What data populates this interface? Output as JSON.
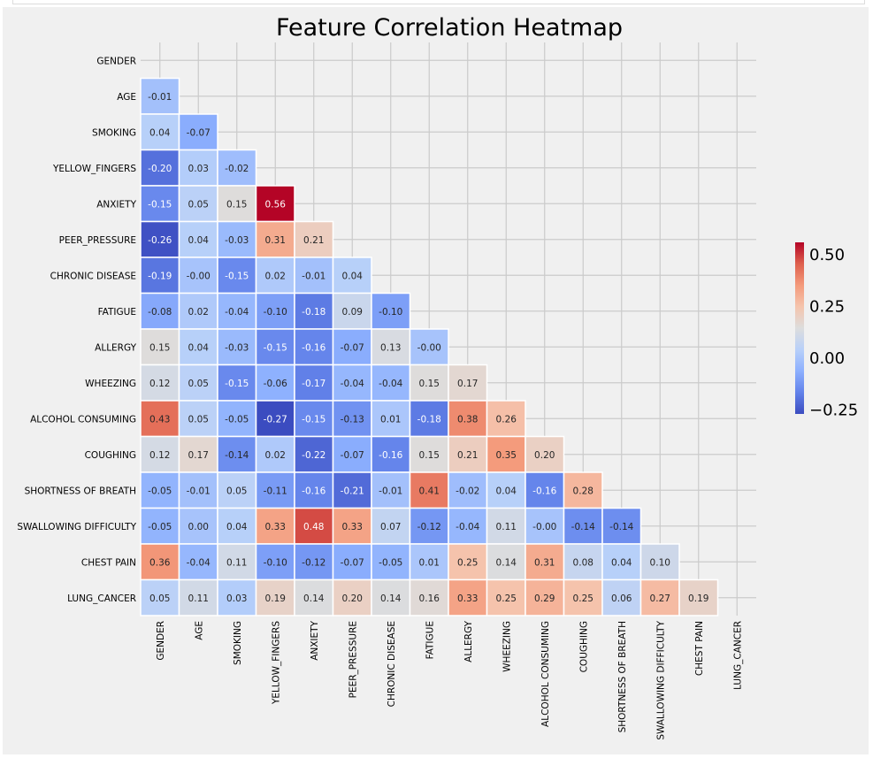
{
  "chart_data": {
    "type": "heatmap",
    "title": "Feature Correlation Heatmap",
    "mask": "upper-triangle-including-diagonal",
    "colormap": "coolwarm",
    "vmin": -0.27,
    "vmax": 0.56,
    "labels": [
      "GENDER",
      "AGE",
      "SMOKING",
      "YELLOW_FINGERS",
      "ANXIETY",
      "PEER_PRESSURE",
      "CHRONIC DISEASE",
      "FATIGUE",
      "ALLERGY",
      "WHEEZING",
      "ALCOHOL CONSUMING",
      "COUGHING",
      "SHORTNESS OF BREATH",
      "SWALLOWING DIFFICULTY",
      "CHEST PAIN",
      "LUNG_CANCER"
    ],
    "lower_triangle": [
      [],
      [
        "-0.01"
      ],
      [
        "0.04",
        "-0.07"
      ],
      [
        "-0.20",
        "0.03",
        "-0.02"
      ],
      [
        "-0.15",
        "0.05",
        "0.15",
        "0.56"
      ],
      [
        "-0.26",
        "0.04",
        "-0.03",
        "0.31",
        "0.21"
      ],
      [
        "-0.19",
        "-0.00",
        "-0.15",
        "0.02",
        "-0.01",
        "0.04"
      ],
      [
        "-0.08",
        "0.02",
        "-0.04",
        "-0.10",
        "-0.18",
        "0.09",
        "-0.10"
      ],
      [
        "0.15",
        "0.04",
        "-0.03",
        "-0.15",
        "-0.16",
        "-0.07",
        "0.13",
        "-0.00"
      ],
      [
        "0.12",
        "0.05",
        "-0.15",
        "-0.06",
        "-0.17",
        "-0.04",
        "-0.04",
        "0.15",
        "0.17"
      ],
      [
        "0.43",
        "0.05",
        "-0.05",
        "-0.27",
        "-0.15",
        "-0.13",
        "0.01",
        "-0.18",
        "0.38",
        "0.26"
      ],
      [
        "0.12",
        "0.17",
        "-0.14",
        "0.02",
        "-0.22",
        "-0.07",
        "-0.16",
        "0.15",
        "0.21",
        "0.35",
        "0.20"
      ],
      [
        "-0.05",
        "-0.01",
        "0.05",
        "-0.11",
        "-0.16",
        "-0.21",
        "-0.01",
        "0.41",
        "-0.02",
        "0.04",
        "-0.16",
        "0.28"
      ],
      [
        "-0.05",
        "0.00",
        "0.04",
        "0.33",
        "0.48",
        "0.33",
        "0.07",
        "-0.12",
        "-0.04",
        "0.11",
        "-0.00",
        "-0.14",
        "-0.14"
      ],
      [
        "0.36",
        "-0.04",
        "0.11",
        "-0.10",
        "-0.12",
        "-0.07",
        "-0.05",
        "0.01",
        "0.25",
        "0.14",
        "0.31",
        "0.08",
        "0.04",
        "0.10"
      ],
      [
        "0.05",
        "0.11",
        "0.03",
        "0.19",
        "0.14",
        "0.20",
        "0.14",
        "0.16",
        "0.33",
        "0.25",
        "0.29",
        "0.25",
        "0.06",
        "0.27",
        "0.19"
      ]
    ],
    "colorbar": {
      "ticks": [
        "0.50",
        "0.25",
        "0.00",
        "−0.25"
      ],
      "tick_values": [
        0.5,
        0.25,
        0.0,
        -0.25
      ]
    },
    "grid": true
  }
}
